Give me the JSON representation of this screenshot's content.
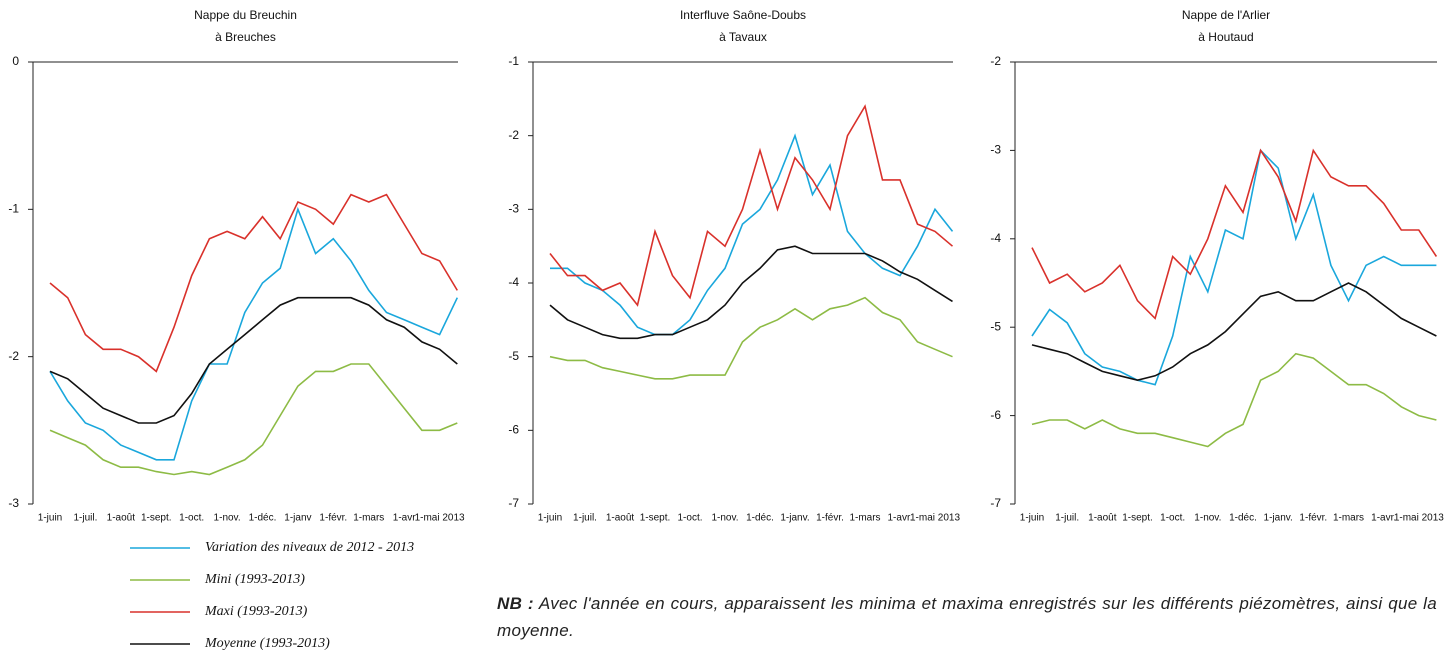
{
  "chart_data": [
    {
      "type": "line",
      "title": "Nappe du Breuchin",
      "subtitle": "à Breuches",
      "categories": [
        "1-juin",
        null,
        "1-juil.",
        null,
        "1-août",
        null,
        "1-sept.",
        null,
        "1-oct.",
        null,
        "1-nov.",
        null,
        "1-déc.",
        null,
        "1-janv",
        null,
        "1-févr.",
        null,
        "1-mars",
        null,
        "1-avr",
        null,
        "1-mai 2013",
        null
      ],
      "ylim": [
        -3,
        0
      ],
      "yticks": [
        0,
        -1,
        -2,
        -3
      ],
      "series": [
        {
          "name": "Variation des niveaux de 2012 - 2013",
          "color": "#1aa7dc",
          "values": [
            -2.1,
            -2.3,
            -2.45,
            -2.5,
            -2.6,
            -2.65,
            -2.7,
            -2.7,
            -2.3,
            -2.05,
            -2.05,
            -1.7,
            -1.5,
            -1.4,
            -1.0,
            -1.3,
            -1.2,
            -1.35,
            -1.55,
            -1.7,
            -1.75,
            -1.8,
            -1.85,
            -1.6
          ]
        },
        {
          "name": "Mini (1993-2013)",
          "color": "#8dbb45",
          "values": [
            -2.5,
            -2.55,
            -2.6,
            -2.7,
            -2.75,
            -2.75,
            -2.78,
            -2.8,
            -2.78,
            -2.8,
            -2.75,
            -2.7,
            -2.6,
            -2.4,
            -2.2,
            -2.1,
            -2.1,
            -2.05,
            -2.05,
            -2.2,
            -2.35,
            -2.5,
            -2.5,
            -2.45
          ]
        },
        {
          "name": "Maxi  (1993-2013)",
          "color": "#d9312b",
          "values": [
            -1.5,
            -1.6,
            -1.85,
            -1.95,
            -1.95,
            -2.0,
            -2.1,
            -1.8,
            -1.45,
            -1.2,
            -1.15,
            -1.2,
            -1.05,
            -1.2,
            -0.95,
            -1.0,
            -1.1,
            -0.9,
            -0.95,
            -0.9,
            -1.1,
            -1.3,
            -1.35,
            -1.55
          ]
        },
        {
          "name": "Moyenne  (1993-2013)",
          "color": "#111111",
          "values": [
            -2.1,
            -2.15,
            -2.25,
            -2.35,
            -2.4,
            -2.45,
            -2.45,
            -2.4,
            -2.25,
            -2.05,
            -1.95,
            -1.85,
            -1.75,
            -1.65,
            -1.6,
            -1.6,
            -1.6,
            -1.6,
            -1.65,
            -1.75,
            -1.8,
            -1.9,
            -1.95,
            -2.05
          ]
        }
      ]
    },
    {
      "type": "line",
      "title": "Interfluve Saône-Doubs",
      "subtitle": "à Tavaux",
      "categories": [
        "1-juin",
        null,
        "1-juil.",
        null,
        "1-août",
        null,
        "1-sept.",
        null,
        "1-oct.",
        null,
        "1-nov.",
        null,
        "1-déc.",
        null,
        "1-janv.",
        null,
        "1-févr.",
        null,
        "1-mars",
        null,
        "1-avr.",
        null,
        "1-mai 2013",
        null
      ],
      "ylim": [
        -7,
        -1
      ],
      "yticks": [
        -1,
        -2,
        -3,
        -4,
        -5,
        -6,
        -7
      ],
      "series": [
        {
          "name": "Variation des niveaux de 2012 - 2013",
          "color": "#1aa7dc",
          "values": [
            -3.8,
            -3.8,
            -4.0,
            -4.1,
            -4.3,
            -4.6,
            -4.7,
            -4.7,
            -4.5,
            -4.1,
            -3.8,
            -3.2,
            -3.0,
            -2.6,
            -2.0,
            -2.8,
            -2.4,
            -3.3,
            -3.6,
            -3.8,
            -3.9,
            -3.5,
            -3.0,
            -3.3
          ]
        },
        {
          "name": "Mini (1993-2013)",
          "color": "#8dbb45",
          "values": [
            -5.0,
            -5.05,
            -5.05,
            -5.15,
            -5.2,
            -5.25,
            -5.3,
            -5.3,
            -5.25,
            -5.25,
            -5.25,
            -4.8,
            -4.6,
            -4.5,
            -4.35,
            -4.5,
            -4.35,
            -4.3,
            -4.2,
            -4.4,
            -4.5,
            -4.8,
            -4.9,
            -5.0
          ]
        },
        {
          "name": "Maxi  (1993-2013)",
          "color": "#d9312b",
          "values": [
            -3.6,
            -3.9,
            -3.9,
            -4.1,
            -4.0,
            -4.3,
            -3.3,
            -3.9,
            -4.2,
            -3.3,
            -3.5,
            -3.0,
            -2.2,
            -3.0,
            -2.3,
            -2.6,
            -3.0,
            -2.0,
            -1.6,
            -2.6,
            -2.6,
            -3.2,
            -3.3,
            -3.5
          ]
        },
        {
          "name": "Moyenne  (1993-2013)",
          "color": "#111111",
          "values": [
            -4.3,
            -4.5,
            -4.6,
            -4.7,
            -4.75,
            -4.75,
            -4.7,
            -4.7,
            -4.6,
            -4.5,
            -4.3,
            -4.0,
            -3.8,
            -3.55,
            -3.5,
            -3.6,
            -3.6,
            -3.6,
            -3.6,
            -3.7,
            -3.85,
            -3.95,
            -4.1,
            -4.25
          ]
        }
      ]
    },
    {
      "type": "line",
      "title": "Nappe de l'Arlier",
      "subtitle": "à Houtaud",
      "categories": [
        "1-juin",
        null,
        "1-juil.",
        null,
        "1-août",
        null,
        "1-sept.",
        null,
        "1-oct.",
        null,
        "1-nov.",
        null,
        "1-déc.",
        null,
        "1-janv.",
        null,
        "1-févr.",
        null,
        "1-mars",
        null,
        "1-avr.",
        null,
        "1-mai 2013",
        null
      ],
      "ylim": [
        -7,
        -2
      ],
      "yticks": [
        -2,
        -3,
        -4,
        -5,
        -6,
        -7
      ],
      "series": [
        {
          "name": "Variation des niveaux de 2012 - 2013",
          "color": "#1aa7dc",
          "values": [
            -5.1,
            -4.8,
            -4.95,
            -5.3,
            -5.45,
            -5.5,
            -5.6,
            -5.65,
            -5.1,
            -4.2,
            -4.6,
            -3.9,
            -4.0,
            -3.0,
            -3.2,
            -4.0,
            -3.5,
            -4.3,
            -4.7,
            -4.3,
            -4.2,
            -4.3,
            -4.3,
            -4.3
          ]
        },
        {
          "name": "Mini (1993-2013)",
          "color": "#8dbb45",
          "values": [
            -6.1,
            -6.05,
            -6.05,
            -6.15,
            -6.05,
            -6.15,
            -6.2,
            -6.2,
            -6.25,
            -6.3,
            -6.35,
            -6.2,
            -6.1,
            -5.6,
            -5.5,
            -5.3,
            -5.35,
            -5.5,
            -5.65,
            -5.65,
            -5.75,
            -5.9,
            -6.0,
            -6.05
          ]
        },
        {
          "name": "Maxi  (1993-2013)",
          "color": "#d9312b",
          "values": [
            -4.1,
            -4.5,
            -4.4,
            -4.6,
            -4.5,
            -4.3,
            -4.7,
            -4.9,
            -4.2,
            -4.4,
            -4.0,
            -3.4,
            -3.7,
            -3.0,
            -3.3,
            -3.8,
            -3.0,
            -3.3,
            -3.4,
            -3.4,
            -3.6,
            -3.9,
            -3.9,
            -4.2
          ]
        },
        {
          "name": "Moyenne  (1993-2013)",
          "color": "#111111",
          "values": [
            -5.2,
            -5.25,
            -5.3,
            -5.4,
            -5.5,
            -5.55,
            -5.6,
            -5.55,
            -5.45,
            -5.3,
            -5.2,
            -5.05,
            -4.85,
            -4.65,
            -4.6,
            -4.7,
            -4.7,
            -4.6,
            -4.5,
            -4.6,
            -4.75,
            -4.9,
            -5.0,
            -5.1
          ]
        }
      ]
    }
  ],
  "note": {
    "label": "NB :",
    "text": "Avec l'année en cours, apparaissent les minima et maxima enregistrés sur les différents piézomètres, ainsi que la moyenne."
  }
}
